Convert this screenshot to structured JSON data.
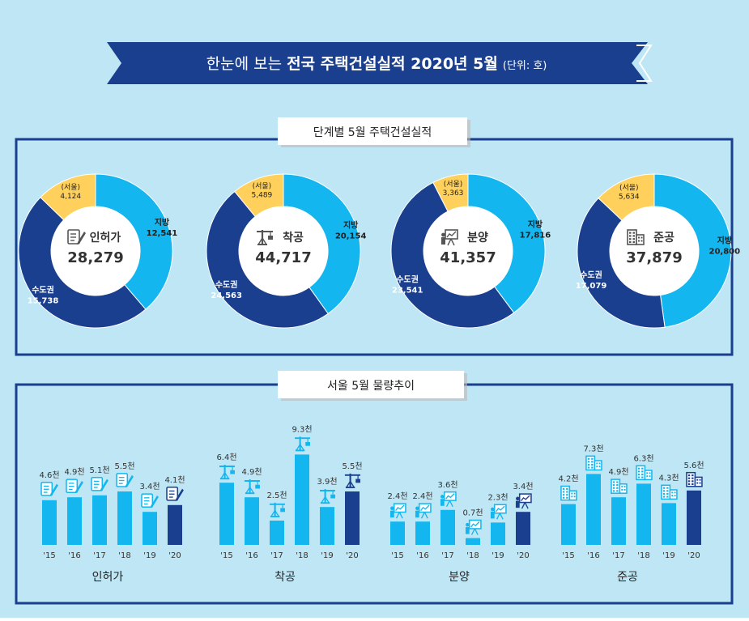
{
  "header": {
    "title_prefix": "한눈에 보는 ",
    "title_main": "전국 주택건설실적 2020년 5월",
    "unit": "(단위: 호)"
  },
  "sections": {
    "donut_title": "단계별 5월 주택건설실적",
    "bar_title": "서울 5월 물량추이"
  },
  "colors": {
    "metro": "#1a3f8f",
    "local": "#13b6ef",
    "seoul": "#ffd15c",
    "bar_light": "#13b6ef",
    "bar_dark": "#1a3f8f",
    "ribbon": "#1a3f8f",
    "frame": "#1a3f8f"
  },
  "chart_data": [
    {
      "type": "pie",
      "title": "",
      "donuts": [
        {
          "name": "인허가",
          "total_label": "28,279",
          "icon": "document-pen-icon",
          "segments": [
            {
              "label": "(서울)",
              "value_label": "4,124",
              "value": 4124
            },
            {
              "label": "지방",
              "value_label": "12,541",
              "value": 12541
            },
            {
              "label": "수도권",
              "value_label": "15,738",
              "value": 15738
            }
          ]
        },
        {
          "name": "착공",
          "total_label": "44,717",
          "icon": "crane-icon",
          "segments": [
            {
              "label": "(서울)",
              "value_label": "5,489",
              "value": 5489
            },
            {
              "label": "지방",
              "value_label": "20,154",
              "value": 20154
            },
            {
              "label": "수도권",
              "value_label": "24,563",
              "value": 24563
            }
          ]
        },
        {
          "name": "분양",
          "total_label": "41,357",
          "icon": "presentation-board-icon",
          "segments": [
            {
              "label": "(서울)",
              "value_label": "3,363",
              "value": 3363
            },
            {
              "label": "지방",
              "value_label": "17,816",
              "value": 17816
            },
            {
              "label": "수도권",
              "value_label": "23,541",
              "value": 23541
            }
          ]
        },
        {
          "name": "준공",
          "total_label": "37,879",
          "icon": "building-icon",
          "segments": [
            {
              "label": "(서울)",
              "value_label": "5,634",
              "value": 5634
            },
            {
              "label": "지방",
              "value_label": "20,800",
              "value": 20800
            },
            {
              "label": "수도권",
              "value_label": "17,079",
              "value": 17079
            }
          ]
        }
      ]
    },
    {
      "type": "bar",
      "title": "",
      "categories": [
        "'15",
        "'16",
        "'17",
        "'18",
        "'19",
        "'20"
      ],
      "groups": [
        {
          "name": "인허가",
          "icon": "document-pen-icon",
          "values": [
            4.6,
            4.9,
            5.1,
            5.5,
            3.4,
            4.1
          ],
          "labels": [
            "4.6천",
            "4.9천",
            "5.1천",
            "5.5천",
            "3.4천",
            "4.1천"
          ]
        },
        {
          "name": "착공",
          "icon": "crane-icon",
          "values": [
            6.4,
            4.9,
            2.5,
            9.3,
            3.9,
            5.5
          ],
          "labels": [
            "6.4천",
            "4.9천",
            "2.5천",
            "9.3천",
            "3.9천",
            "5.5천"
          ]
        },
        {
          "name": "분양",
          "icon": "presentation-board-icon",
          "values": [
            2.4,
            2.4,
            3.6,
            0.7,
            2.3,
            3.4
          ],
          "labels": [
            "2.4천",
            "2.4천",
            "3.6천",
            "0.7천",
            "2.3천",
            "3.4천"
          ]
        },
        {
          "name": "준공",
          "icon": "building-icon",
          "values": [
            4.2,
            7.3,
            4.9,
            6.3,
            4.3,
            5.6
          ],
          "labels": [
            "4.2천",
            "7.3천",
            "4.9천",
            "6.3천",
            "4.3천",
            "5.6천"
          ]
        }
      ]
    }
  ]
}
